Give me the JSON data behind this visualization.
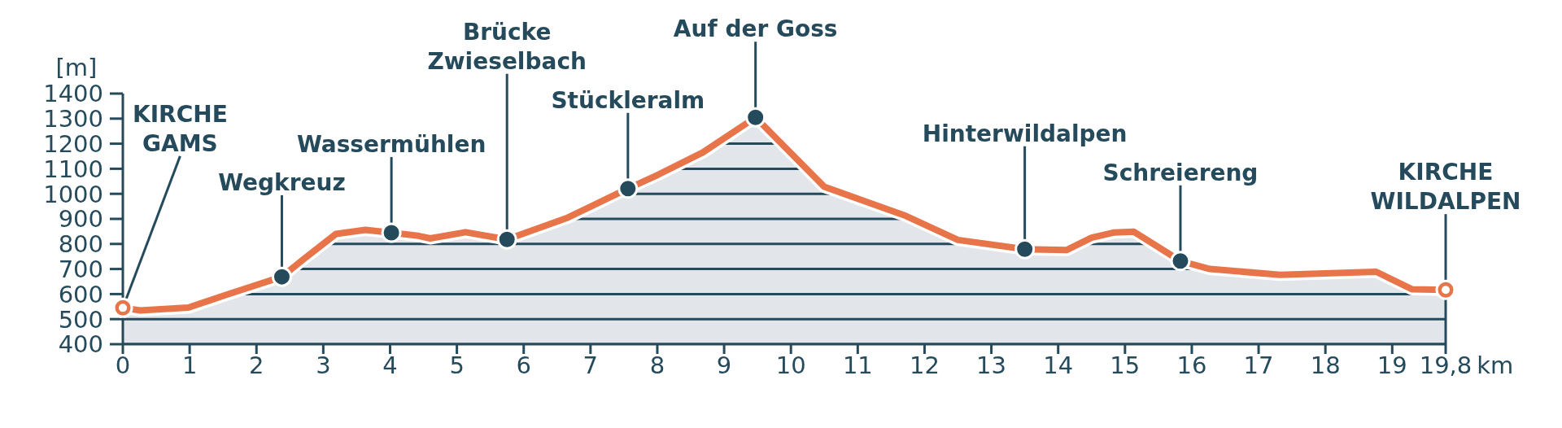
{
  "chart_data": {
    "type": "area",
    "ylabel": "[m]",
    "xlabel": "km",
    "xlim": [
      0,
      19.8
    ],
    "ylim": [
      400,
      1400
    ],
    "xticks": [
      0,
      1,
      2,
      3,
      4,
      5,
      6,
      7,
      8,
      9,
      10,
      11,
      12,
      13,
      14,
      15,
      16,
      17,
      18,
      19,
      {
        "value": 19.8,
        "label": "19,8"
      }
    ],
    "yticks": [
      400,
      500,
      600,
      700,
      800,
      900,
      1000,
      1100,
      1200,
      1300,
      1400
    ],
    "grid": "y",
    "series": [
      {
        "type": "area",
        "color": "#e8744a",
        "x": [
          0,
          0.26,
          0.98,
          1.55,
          2.38,
          2.7,
          3.19,
          3.63,
          4.02,
          4.41,
          4.6,
          5.13,
          5.75,
          6.66,
          7.56,
          8.01,
          8.68,
          9.47,
          10.5,
          11.72,
          12.5,
          13.5,
          14.13,
          14.5,
          14.84,
          15.13,
          15.83,
          16.27,
          17.32,
          18.76,
          19.3,
          19.8
        ],
        "values": [
          545,
          535,
          546,
          597,
          669,
          738,
          840,
          856,
          845,
          833,
          822,
          847,
          818,
          905,
          1021,
          1076,
          1165,
          1305,
          1028,
          912,
          816,
          779,
          776,
          825,
          846,
          849,
          732,
          700,
          677,
          689,
          619,
          617
        ]
      },
      {
        "type": "scatter",
        "marker": "circle",
        "x": [
          0,
          2.38,
          4.02,
          5.75,
          7.56,
          9.47,
          13.5,
          15.83,
          19.8
        ],
        "values": [
          545,
          669,
          845,
          818,
          1021,
          1305,
          779,
          732,
          617
        ],
        "colors": [
          "#e8744a",
          "#244a5c",
          "#244a5c",
          "#244a5c",
          "#244a5c",
          "#244a5c",
          "#244a5c",
          "#244a5c",
          "#e8744a"
        ]
      }
    ],
    "annotations": [
      {
        "text": "KIRCHE\nGAMS",
        "x": 0,
        "y": 545
      },
      {
        "text": "Wegkreuz",
        "x": 2.38,
        "y": 669
      },
      {
        "text": "Wassermühlen",
        "x": 4.02,
        "y": 845
      },
      {
        "text": "Brücke\nZwieselbach",
        "x": 5.75,
        "y": 818
      },
      {
        "text": "Stückleralm",
        "x": 7.56,
        "y": 1021
      },
      {
        "text": "Auf der Goss",
        "x": 9.47,
        "y": 1305
      },
      {
        "text": "Hinterwildalpen",
        "x": 13.5,
        "y": 779
      },
      {
        "text": "Schreiereng",
        "x": 15.83,
        "y": 732
      },
      {
        "text": "KIRCHE\nWILDALPEN",
        "x": 19.8,
        "y": 617
      }
    ]
  }
}
